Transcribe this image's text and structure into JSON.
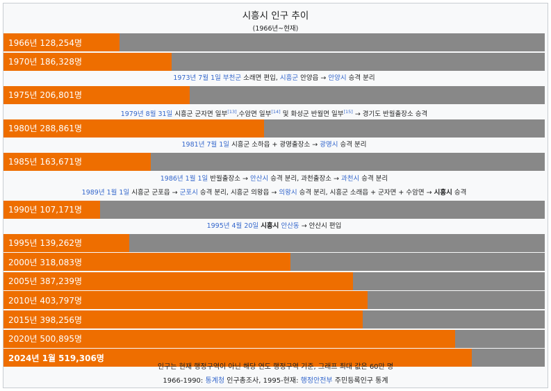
{
  "chart_data": {
    "type": "bar",
    "orientation": "horizontal",
    "title": "시흥시 인구 추이",
    "subtitle": "(1966년~현재)",
    "xlim": [
      0,
      600000
    ],
    "categories": [
      "1966년",
      "1970년",
      "1975년",
      "1980년",
      "1985년",
      "1990년",
      "1995년",
      "2000년",
      "2005년",
      "2010년",
      "2015년",
      "2020년",
      "2024년 1월"
    ],
    "values": [
      128254,
      186328,
      206801,
      288861,
      163671,
      107171,
      139262,
      318083,
      387239,
      403797,
      398256,
      500895,
      519306
    ],
    "labels": [
      "1966년 128,254명",
      "1970년 186,328명",
      "1975년 206,801명",
      "1980년 288,861명",
      "1985년 163,671명",
      "1990년 107,171명",
      "1995년 139,262명",
      "2000년 318,083명",
      "2005년 387,239명",
      "2010년 403,797명",
      "2015년 398,256명",
      "2020년 500,895명",
      "2024년 1월 519,306명"
    ],
    "annotations": [
      {
        "after_index": 1,
        "parts": [
          {
            "t": "1973년 7월 1일",
            "link": true
          },
          {
            "t": " "
          },
          {
            "t": "부천군",
            "link": true
          },
          {
            "t": " 소래면 편입, "
          },
          {
            "t": "시흥군",
            "link": true
          },
          {
            "t": " 안양읍 → "
          },
          {
            "t": "안양시",
            "link": true
          },
          {
            "t": " 승격 분리"
          }
        ]
      },
      {
        "after_index": 2,
        "parts": [
          {
            "t": "1979년 8월 31일",
            "link": true
          },
          {
            "t": " 시흥군 군자면 일부"
          },
          {
            "t": "[13]",
            "sup": true,
            "link": true
          },
          {
            "t": ",수암면 일부"
          },
          {
            "t": "[14]",
            "sup": true,
            "link": true
          },
          {
            "t": " 및 화성군 반월면 일부"
          },
          {
            "t": "[15]",
            "sup": true,
            "link": true
          },
          {
            "t": " → 경기도 반월출장소 승격"
          }
        ]
      },
      {
        "after_index": 3,
        "parts": [
          {
            "t": "1981년 7월 1일",
            "link": true
          },
          {
            "t": " 시흥군 소하읍 + 광명출장소 → "
          },
          {
            "t": "광명시",
            "link": true
          },
          {
            "t": " 승격 분리"
          }
        ]
      },
      {
        "after_index": 4,
        "parts": [
          {
            "t": "1986년 1월 1일",
            "link": true
          },
          {
            "t": " 반월출장소 → "
          },
          {
            "t": "안산시",
            "link": true
          },
          {
            "t": " 승격 분리, 과천출장소 → "
          },
          {
            "t": "과천시",
            "link": true
          },
          {
            "t": " 승격 분리"
          }
        ]
      },
      {
        "after_index": 4,
        "parts": [
          {
            "t": "1989년 1월 1일",
            "link": true
          },
          {
            "t": " 시흥군 군포읍 → "
          },
          {
            "t": "군포시",
            "link": true
          },
          {
            "t": " 승격 분리, 시흥군 의왕읍 → "
          },
          {
            "t": "의왕시",
            "link": true
          },
          {
            "t": " 승격 분리, 시흥군 소래읍 + 군자면 + 수암면 → "
          },
          {
            "t": "시흥시",
            "bold": true
          },
          {
            "t": " 승격"
          }
        ]
      },
      {
        "after_index": 5,
        "parts": [
          {
            "t": "1995년 4월 20일",
            "link": true
          },
          {
            "t": " "
          },
          {
            "t": "시흥시",
            "bold": true
          },
          {
            "t": " "
          },
          {
            "t": "안산동",
            "link": true
          },
          {
            "t": " → 안산시 편입"
          }
        ]
      }
    ],
    "footnote": "인구는 현재 행정구역이 아닌 해당 연도 행정구역 기준, 그래프 최대 값은 60만 명",
    "source": {
      "prefix": "1966-1990: ",
      "org1": "통계청",
      "mid": " 인구총조사, 1995-현재: ",
      "org2": "행정안전부",
      "suffix": " 주민등록인구 통계"
    }
  },
  "colors": {
    "bar": "#ee6e00",
    "track": "#888888",
    "link": "#3366cc"
  }
}
